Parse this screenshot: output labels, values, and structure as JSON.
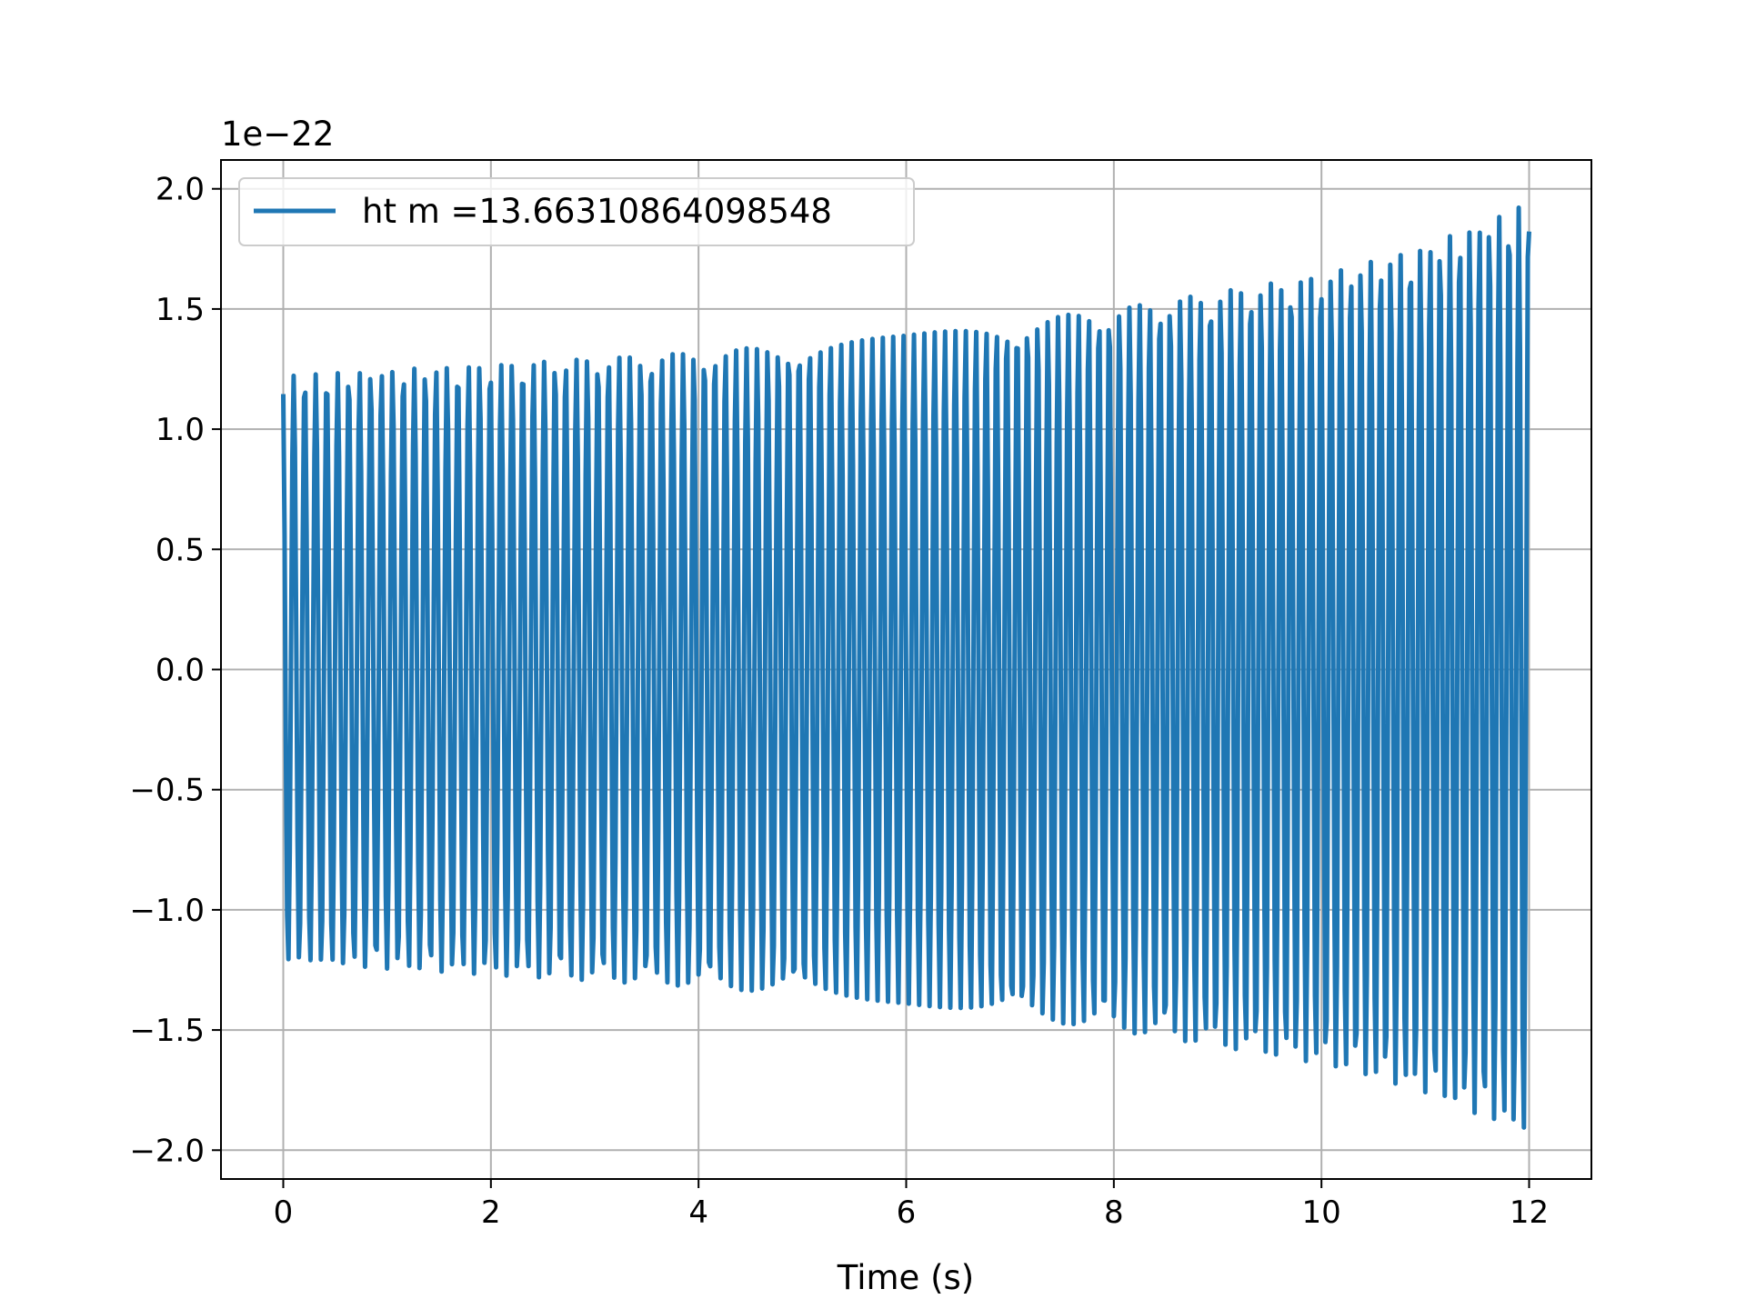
{
  "chart_data": {
    "type": "line",
    "title": "",
    "xlabel": "Time (s)",
    "ylabel": "",
    "y_offset_label": "1e−22",
    "y_scale_factor": 1e-22,
    "xlim": [
      -0.6,
      12.6
    ],
    "ylim": [
      -2.12,
      2.12
    ],
    "x_ticks": [
      0,
      2,
      4,
      6,
      8,
      10,
      12
    ],
    "x_tick_labels": [
      "0",
      "2",
      "4",
      "6",
      "8",
      "10",
      "12"
    ],
    "y_ticks": [
      2.0,
      1.5,
      1.0,
      0.5,
      0.0,
      -0.5,
      -1.0,
      -1.5,
      -2.0
    ],
    "y_tick_labels": [
      "2.0",
      "1.5",
      "1.0",
      "0.5",
      "0.0",
      "−0.5",
      "−1.0",
      "−1.5",
      "−2.0"
    ],
    "grid": true,
    "legend_position": "top-left",
    "series": [
      {
        "name": "ht m =13.66310864098548",
        "color": "#1f77b4",
        "x_start": 0,
        "x_end": 12,
        "envelope_x": [
          0,
          2,
          4,
          6,
          8,
          10,
          11,
          12
        ],
        "envelope_amplitude": [
          1.22,
          1.27,
          1.32,
          1.39,
          1.5,
          1.64,
          1.76,
          1.94
        ],
        "cycles_approx": 120
      }
    ]
  }
}
